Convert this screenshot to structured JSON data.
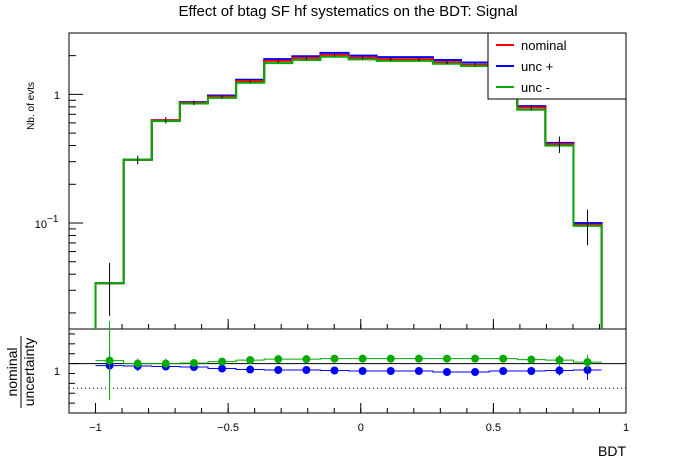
{
  "chart_data": {
    "type": "histogram",
    "title": "Effect of btag SF hf systematics on the BDT: Signal",
    "xlabel": "BDT",
    "ylabel": "Nb. of evts",
    "xlim": [
      -1.1,
      1.0
    ],
    "ylim": [
      0.015,
      3.0
    ],
    "yscale": "log",
    "x_ticks": [
      "−1",
      "−0.5",
      "0",
      "0.5",
      "1"
    ],
    "y_ticks": [
      "1",
      "10",
      "−1"
    ],
    "legend": {
      "placement": "top-right",
      "entries": [
        "nominal",
        "unc +",
        "unc -"
      ]
    },
    "colors": {
      "nominal": "#ff0000",
      "unc_plus": "#0000ff",
      "unc_minus": "#00aa00",
      "frame": "#000000"
    },
    "bin_edges": [
      -1.0,
      -0.894,
      -0.788,
      -0.682,
      -0.576,
      -0.47,
      -0.364,
      -0.258,
      -0.152,
      -0.046,
      0.06,
      0.166,
      0.272,
      0.378,
      0.484,
      0.59,
      0.696,
      0.802,
      0.908
    ],
    "series": [
      {
        "name": "nominal",
        "values": [
          0.034,
          0.31,
          0.63,
          0.86,
          0.96,
          1.27,
          1.82,
          1.92,
          2.03,
          1.93,
          1.88,
          1.88,
          1.78,
          1.7,
          1.48,
          0.79,
          0.41,
          0.097
        ]
      },
      {
        "name": "unc +",
        "values": [
          0.034,
          0.31,
          0.63,
          0.87,
          0.98,
          1.3,
          1.88,
          1.98,
          2.1,
          2.0,
          1.95,
          1.95,
          1.85,
          1.77,
          1.53,
          0.81,
          0.42,
          0.1
        ]
      },
      {
        "name": "unc -",
        "values": [
          0.034,
          0.31,
          0.62,
          0.85,
          0.94,
          1.23,
          1.75,
          1.85,
          1.96,
          1.87,
          1.82,
          1.82,
          1.73,
          1.66,
          1.44,
          0.76,
          0.4,
          0.095
        ]
      }
    ],
    "ratio": {
      "ylabel_top": "nominal",
      "ylabel_bottom": "uncertainty",
      "y_tick": "1",
      "ylim": [
        0.9,
        1.07
      ],
      "reference_line": 1.0,
      "dotted_line": 0.95,
      "x": [
        -0.947,
        -0.841,
        -0.735,
        -0.629,
        -0.523,
        -0.417,
        -0.311,
        -0.205,
        -0.099,
        0.007,
        0.113,
        0.219,
        0.325,
        0.431,
        0.537,
        0.643,
        0.749,
        0.855
      ],
      "unc_plus": [
        0.996,
        0.995,
        0.994,
        0.993,
        0.99,
        0.988,
        0.987,
        0.987,
        0.986,
        0.985,
        0.985,
        0.985,
        0.983,
        0.983,
        0.985,
        0.985,
        0.986,
        0.987
      ],
      "unc_minus": [
        1.006,
        1.0,
        1.0,
        1.001,
        1.004,
        1.007,
        1.009,
        1.009,
        1.01,
        1.01,
        1.01,
        1.01,
        1.01,
        1.01,
        1.01,
        1.008,
        1.007,
        1.003
      ],
      "err_plus": [
        0.03,
        0.01,
        0.006,
        0.005,
        0.005,
        0.004,
        0.004,
        0.004,
        0.003,
        0.004,
        0.004,
        0.004,
        0.004,
        0.004,
        0.005,
        0.008,
        0.01,
        0.02
      ],
      "err_minus": [
        0.08,
        0.01,
        0.01,
        0.006,
        0.005,
        0.004,
        0.004,
        0.004,
        0.003,
        0.004,
        0.004,
        0.004,
        0.004,
        0.004,
        0.005,
        0.008,
        0.01,
        0.015
      ]
    },
    "bin_errors": [
      0.005,
      0.008,
      0.012,
      0.012,
      0.012,
      0.015,
      0.02,
      0.02,
      0.02,
      0.02,
      0.02,
      0.02,
      0.02,
      0.02,
      0.02,
      0.012,
      0.02,
      0.01
    ]
  }
}
